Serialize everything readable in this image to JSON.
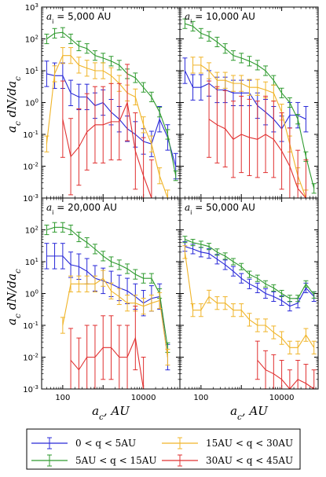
{
  "figure": {
    "ylabel": "a_c dN/da_c",
    "xlabel": "a_c, AU"
  },
  "colors": {
    "blue": "#2828d8",
    "green": "#2e9a2e",
    "orange": "#f0b428",
    "red": "#e03030"
  },
  "legend": [
    {
      "label": "0 < q < 5AU",
      "color": "#2828d8"
    },
    {
      "label": "15AU < q < 30AU",
      "color": "#f0b428"
    },
    {
      "label": "5AU < q < 15AU",
      "color": "#2e9a2e"
    },
    {
      "label": "30AU < q < 45AU",
      "color": "#e03030"
    }
  ],
  "chart_data": [
    {
      "type": "line",
      "panel_label": "a_i = 5,000 AU",
      "xscale": "log",
      "yscale": "log",
      "xlim": [
        30,
        80000
      ],
      "ylim": [
        0.001,
        1000
      ],
      "x": [
        40,
        63,
        100,
        158,
        251,
        398,
        631,
        1000,
        1585,
        2512,
        3981,
        6310,
        10000,
        15849,
        25119,
        39811,
        63096
      ],
      "series": [
        {
          "name": "0<q<5AU",
          "color": "#2828d8",
          "values": [
            8,
            7,
            7,
            2,
            1.5,
            1.5,
            0.8,
            1.0,
            0.5,
            0.3,
            0.15,
            0.1,
            0.06,
            0.05,
            0.3,
            0.08,
            0.01
          ],
          "err": [
            0.4,
            0.4,
            0.4,
            0.4,
            0.4,
            0.4,
            0.4,
            0.4,
            0.4,
            0.4,
            0.4,
            0.4,
            0.4,
            0.4,
            0.4,
            0.4,
            0.4
          ]
        },
        {
          "name": "5AU<q<15AU",
          "color": "#2e9a2e",
          "values": [
            100,
            150,
            160,
            100,
            60,
            50,
            30,
            25,
            20,
            15,
            8,
            6,
            3,
            1.5,
            0.5,
            0.1,
            0.005
          ],
          "err": [
            0.15,
            0.15,
            0.15,
            0.15,
            0.15,
            0.15,
            0.15,
            0.15,
            0.15,
            0.15,
            0.15,
            0.15,
            0.15,
            0.15,
            0.15,
            0.15,
            0.15
          ]
        },
        {
          "name": "15AU<q<30AU",
          "color": "#f0b428",
          "values": [
            0.05,
            8,
            30,
            30,
            15,
            12,
            10,
            10,
            7,
            4,
            2,
            1.5,
            0.2,
            0.05,
            0.005,
            0.001,
            null
          ],
          "err": [
            0.25,
            0.25,
            0.25,
            0.25,
            0.25,
            0.25,
            0.25,
            0.25,
            0.25,
            0.25,
            0.25,
            0.25,
            0.25,
            0.25,
            0.25,
            0.25,
            0.25
          ]
        },
        {
          "name": "30AU<q<45AU",
          "color": "#e03030",
          "values": [
            null,
            null,
            0.3,
            0.02,
            0.04,
            0.12,
            0.2,
            0.2,
            0.25,
            0.25,
            1.0,
            0.03,
            0.005,
            0.001,
            null,
            null,
            null
          ],
          "err": [
            1.2,
            1.2,
            1.2,
            1.2,
            1.2,
            1.2,
            1.2,
            1.2,
            1.2,
            1.2,
            1.2,
            1.2,
            1.2,
            1.2,
            1.2,
            1.2,
            1.2
          ]
        }
      ]
    },
    {
      "type": "line",
      "panel_label": "a_i = 10,000 AU",
      "xscale": "log",
      "yscale": "log",
      "xlim": [
        30,
        80000
      ],
      "ylim": [
        0.001,
        1000
      ],
      "x": [
        40,
        63,
        100,
        158,
        251,
        398,
        631,
        1000,
        1585,
        2512,
        3981,
        6310,
        10000,
        15849,
        25119,
        39811,
        63096
      ],
      "series": [
        {
          "name": "0<q<5AU",
          "color": "#2828d8",
          "values": [
            10,
            3,
            3,
            4,
            2.5,
            2.5,
            2,
            2,
            2,
            0.8,
            0.5,
            0.3,
            0.15,
            0.4,
            0.4,
            0.3,
            null
          ],
          "err": [
            0.4,
            0.4,
            0.4,
            0.4,
            0.4,
            0.4,
            0.4,
            0.4,
            0.4,
            0.4,
            0.4,
            0.4,
            0.4,
            0.4,
            0.4,
            0.4,
            0.4
          ]
        },
        {
          "name": "5AU<q<15AU",
          "color": "#2e9a2e",
          "values": [
            300,
            250,
            150,
            120,
            80,
            50,
            30,
            25,
            20,
            15,
            10,
            5,
            2,
            1,
            0.3,
            0.02,
            0.002
          ],
          "err": [
            0.15,
            0.15,
            0.15,
            0.15,
            0.15,
            0.15,
            0.15,
            0.15,
            0.15,
            0.15,
            0.15,
            0.15,
            0.15,
            0.15,
            0.15,
            0.15,
            0.15
          ]
        },
        {
          "name": "15AU<q<30AU",
          "color": "#f0b428",
          "values": [
            null,
            15,
            15,
            10,
            5,
            5,
            4,
            4,
            3,
            3,
            2.5,
            2,
            0.5,
            0.05,
            0.005,
            0.001,
            null
          ],
          "err": [
            0.25,
            0.25,
            0.25,
            0.25,
            0.25,
            0.25,
            0.25,
            0.25,
            0.25,
            0.25,
            0.25,
            0.25,
            0.25,
            0.25,
            0.25,
            0.25,
            0.25
          ]
        },
        {
          "name": "30AU<q<45AU",
          "color": "#e03030",
          "values": [
            null,
            null,
            null,
            0.3,
            0.2,
            0.15,
            0.07,
            0.1,
            0.08,
            0.07,
            0.1,
            0.07,
            0.03,
            0.01,
            0.002,
            0.001,
            null
          ],
          "err": [
            1.2,
            1.2,
            1.2,
            1.2,
            1.2,
            1.2,
            1.2,
            1.2,
            1.2,
            1.2,
            1.2,
            1.2,
            1.2,
            1.2,
            1.2,
            1.2,
            1.2
          ]
        }
      ]
    },
    {
      "type": "line",
      "panel_label": "a_i = 20,000 AU",
      "xscale": "log",
      "yscale": "log",
      "xlim": [
        30,
        80000
      ],
      "ylim": [
        0.001,
        1000
      ],
      "x": [
        40,
        63,
        100,
        158,
        251,
        398,
        631,
        1000,
        1585,
        2512,
        3981,
        6310,
        10000,
        15849,
        25119,
        39811,
        63096
      ],
      "series": [
        {
          "name": "0<q<5AU",
          "color": "#2828d8",
          "values": [
            15,
            15,
            15,
            8,
            7,
            5,
            3,
            2.5,
            2,
            1.5,
            1.2,
            0.8,
            0.5,
            0.7,
            0.8,
            0.01,
            null
          ],
          "err": [
            0.4,
            0.4,
            0.4,
            0.4,
            0.4,
            0.4,
            0.4,
            0.4,
            0.4,
            0.4,
            0.4,
            0.4,
            0.4,
            0.4,
            0.4,
            0.4,
            0.4
          ]
        },
        {
          "name": "5AU<q<15AU",
          "color": "#2e9a2e",
          "values": [
            100,
            120,
            120,
            100,
            60,
            40,
            25,
            15,
            10,
            8,
            6,
            4,
            3,
            3,
            1,
            0.02,
            null
          ],
          "err": [
            0.15,
            0.15,
            0.15,
            0.15,
            0.15,
            0.15,
            0.15,
            0.15,
            0.15,
            0.15,
            0.15,
            0.15,
            0.15,
            0.15,
            0.15,
            0.15,
            0.15
          ]
        },
        {
          "name": "15AU<q<30AU",
          "color": "#f0b428",
          "values": [
            null,
            null,
            0.1,
            2,
            2,
            2,
            2,
            3,
            1.2,
            0.8,
            0.5,
            0.5,
            0.4,
            0.5,
            0.6,
            0.01,
            null
          ],
          "err": [
            0.25,
            0.25,
            0.25,
            0.25,
            0.25,
            0.25,
            0.25,
            0.25,
            0.25,
            0.25,
            0.25,
            0.25,
            0.25,
            0.25,
            0.25,
            0.25,
            0.25
          ]
        },
        {
          "name": "30AU<q<45AU",
          "color": "#e03030",
          "values": [
            null,
            null,
            null,
            0.008,
            0.004,
            0.01,
            0.01,
            0.02,
            0.02,
            0.01,
            0.01,
            0.04,
            0.001,
            null,
            null,
            null,
            null
          ],
          "err": [
            1.0,
            1.0,
            1.0,
            1.0,
            1.0,
            1.0,
            1.0,
            1.0,
            1.0,
            1.0,
            1.0,
            1.0,
            1.0,
            1.0,
            1.0,
            1.0,
            1.0
          ]
        }
      ]
    },
    {
      "type": "line",
      "panel_label": "a_i = 50,000 AU",
      "xscale": "log",
      "yscale": "log",
      "xlim": [
        30,
        80000
      ],
      "ylim": [
        0.001,
        1000
      ],
      "x": [
        40,
        63,
        100,
        158,
        251,
        398,
        631,
        1000,
        1585,
        2512,
        3981,
        6310,
        10000,
        15849,
        25119,
        39811,
        63096
      ],
      "series": [
        {
          "name": "0<q<5AU",
          "color": "#2828d8",
          "values": [
            30,
            25,
            20,
            18,
            12,
            8,
            5,
            3,
            2,
            1.5,
            1,
            0.8,
            0.6,
            0.4,
            0.5,
            1.5,
            0.8
          ],
          "err": [
            0.15,
            0.15,
            0.15,
            0.15,
            0.15,
            0.15,
            0.15,
            0.15,
            0.15,
            0.15,
            0.15,
            0.15,
            0.15,
            0.15,
            0.15,
            0.15,
            0.15
          ]
        },
        {
          "name": "5AU<q<15AU",
          "color": "#2e9a2e",
          "values": [
            50,
            40,
            35,
            30,
            20,
            15,
            10,
            7,
            4,
            3,
            2,
            1.5,
            1,
            0.7,
            0.7,
            2,
            0.9
          ],
          "err": [
            0.1,
            0.1,
            0.1,
            0.1,
            0.1,
            0.1,
            0.1,
            0.1,
            0.1,
            0.1,
            0.1,
            0.1,
            0.1,
            0.1,
            0.1,
            0.1,
            0.1
          ]
        },
        {
          "name": "15AU<q<30AU",
          "color": "#f0b428",
          "values": [
            20,
            0.3,
            0.3,
            0.8,
            0.5,
            0.5,
            0.3,
            0.3,
            0.15,
            0.1,
            0.1,
            0.06,
            0.04,
            0.02,
            0.02,
            0.05,
            0.02
          ],
          "err": [
            0.2,
            0.2,
            0.2,
            0.2,
            0.2,
            0.2,
            0.2,
            0.2,
            0.2,
            0.2,
            0.2,
            0.2,
            0.2,
            0.2,
            0.2,
            0.2,
            0.2
          ]
        },
        {
          "name": "30AU<q<45AU",
          "color": "#e03030",
          "values": [
            null,
            null,
            null,
            null,
            null,
            null,
            null,
            null,
            null,
            0.008,
            0.004,
            0.003,
            0.002,
            0.001,
            0.002,
            0.0015,
            0.001
          ],
          "err": [
            0.6,
            0.6,
            0.6,
            0.6,
            0.6,
            0.6,
            0.6,
            0.6,
            0.6,
            0.6,
            0.6,
            0.6,
            0.6,
            0.6,
            0.6,
            0.6,
            0.6
          ]
        }
      ]
    }
  ]
}
